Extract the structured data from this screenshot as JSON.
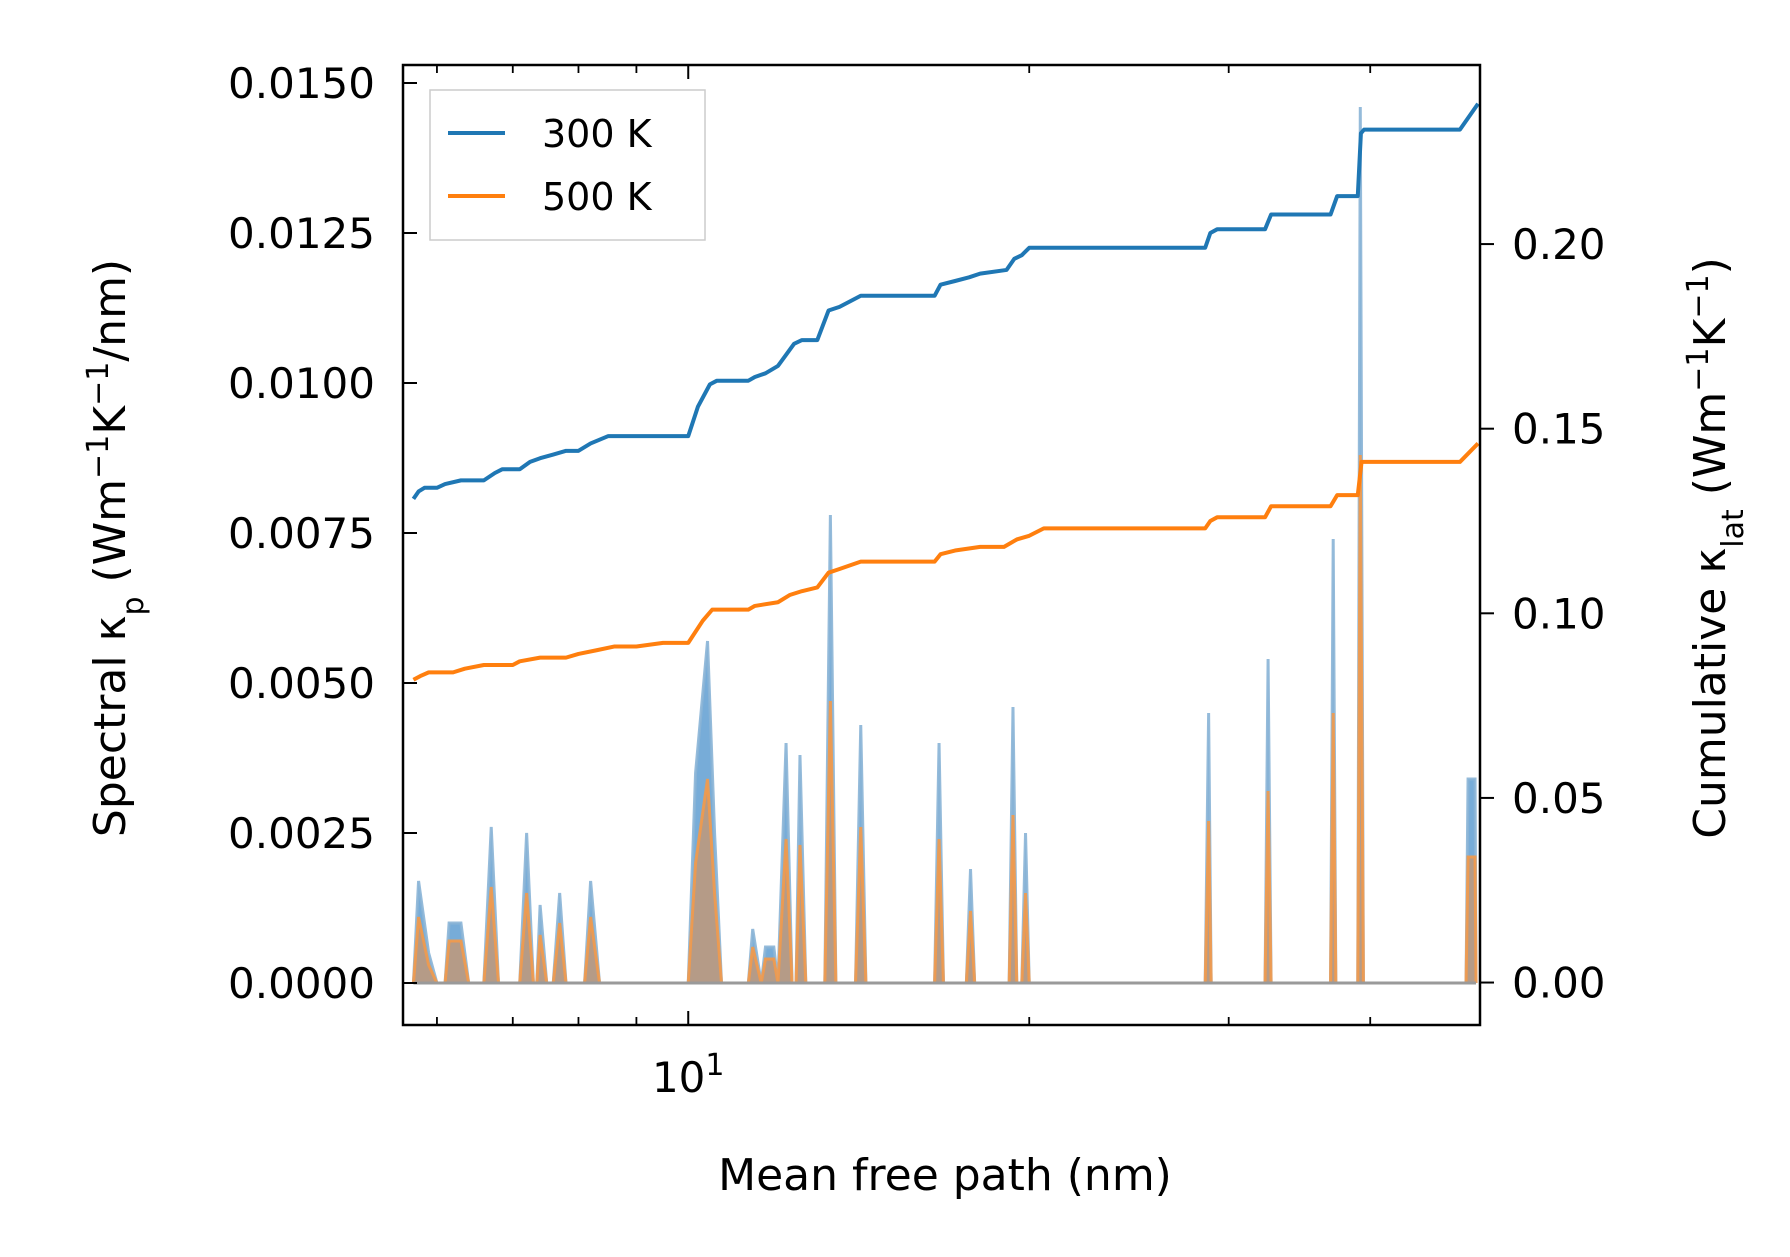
{
  "chart_data": {
    "type": "line",
    "xscale": "log",
    "xlabel": "Mean free path (nm)",
    "x_tick_major": {
      "base": "10",
      "exponent": "1",
      "value": 10
    },
    "x_minor_ticks": [
      6,
      7,
      8,
      9,
      20,
      30,
      40
    ],
    "xlim": [
      5.6,
      50
    ],
    "ylabel_left": {
      "main": "Spectral κ",
      "sub": "p",
      "unit_open": " (Wm",
      "sup1": "−1",
      "mid": "K",
      "sup2": "−1",
      "unit_close": "/nm)"
    },
    "ylabel_right": {
      "main": "Cumulative κ",
      "sub": "lat",
      "unit_open": " (Wm",
      "sup1": "−1",
      "mid": "K",
      "sup2": "−1",
      "unit_close": ")"
    },
    "ylim_left": [
      -0.0007,
      0.0153
    ],
    "ylim_right": [
      -0.0115,
      0.2485
    ],
    "yticks_left": [
      "0.0000",
      "0.0025",
      "0.0050",
      "0.0075",
      "0.0100",
      "0.0125",
      "0.0150"
    ],
    "yticks_right": [
      "0.00",
      "0.05",
      "0.10",
      "0.15",
      "0.20"
    ],
    "legend": {
      "position": "upper-left",
      "entries": [
        "300 K",
        "500 K"
      ]
    },
    "colors": {
      "s300": "#1f77b4",
      "s500": "#ff7f0e",
      "fill300": "#5f9ed1",
      "fill500": "#c9966c"
    },
    "cumulative": [
      {
        "name": "300 K",
        "axis": "right",
        "points": [
          [
            5.72,
            0.131
          ],
          [
            5.78,
            0.133
          ],
          [
            5.85,
            0.134
          ],
          [
            6.0,
            0.134
          ],
          [
            6.1,
            0.135
          ],
          [
            6.3,
            0.136
          ],
          [
            6.6,
            0.136
          ],
          [
            6.75,
            0.138
          ],
          [
            6.85,
            0.139
          ],
          [
            7.1,
            0.139
          ],
          [
            7.25,
            0.141
          ],
          [
            7.4,
            0.142
          ],
          [
            7.6,
            0.143
          ],
          [
            7.8,
            0.144
          ],
          [
            8.0,
            0.144
          ],
          [
            8.2,
            0.146
          ],
          [
            8.5,
            0.148
          ],
          [
            9.0,
            0.148
          ],
          [
            10.0,
            0.148
          ],
          [
            10.2,
            0.156
          ],
          [
            10.45,
            0.162
          ],
          [
            10.6,
            0.163
          ],
          [
            11.3,
            0.163
          ],
          [
            11.45,
            0.164
          ],
          [
            11.7,
            0.165
          ],
          [
            12.0,
            0.167
          ],
          [
            12.2,
            0.17
          ],
          [
            12.4,
            0.173
          ],
          [
            12.6,
            0.174
          ],
          [
            13.0,
            0.174
          ],
          [
            13.3,
            0.182
          ],
          [
            13.6,
            0.183
          ],
          [
            14.2,
            0.186
          ],
          [
            15.0,
            0.186
          ],
          [
            16.5,
            0.186
          ],
          [
            16.7,
            0.189
          ],
          [
            17.2,
            0.19
          ],
          [
            17.7,
            0.191
          ],
          [
            18.1,
            0.192
          ],
          [
            19.1,
            0.193
          ],
          [
            19.4,
            0.196
          ],
          [
            19.7,
            0.197
          ],
          [
            20.0,
            0.199
          ],
          [
            20.6,
            0.199
          ],
          [
            24.0,
            0.199
          ],
          [
            28.6,
            0.199
          ],
          [
            28.9,
            0.203
          ],
          [
            29.3,
            0.204
          ],
          [
            31.0,
            0.204
          ],
          [
            32.3,
            0.204
          ],
          [
            32.7,
            0.208
          ],
          [
            35.0,
            0.208
          ],
          [
            36.9,
            0.208
          ],
          [
            37.4,
            0.213
          ],
          [
            39.0,
            0.213
          ],
          [
            39.25,
            0.23
          ],
          [
            39.5,
            0.231
          ],
          [
            48.0,
            0.231
          ],
          [
            49.8,
            0.238
          ]
        ]
      },
      {
        "name": "500 K",
        "axis": "right",
        "points": [
          [
            5.72,
            0.082
          ],
          [
            5.8,
            0.083
          ],
          [
            5.9,
            0.084
          ],
          [
            6.2,
            0.084
          ],
          [
            6.35,
            0.085
          ],
          [
            6.6,
            0.086
          ],
          [
            7.0,
            0.086
          ],
          [
            7.1,
            0.087
          ],
          [
            7.4,
            0.088
          ],
          [
            7.8,
            0.088
          ],
          [
            8.0,
            0.089
          ],
          [
            8.3,
            0.09
          ],
          [
            8.6,
            0.091
          ],
          [
            9.0,
            0.091
          ],
          [
            9.5,
            0.092
          ],
          [
            10.0,
            0.092
          ],
          [
            10.3,
            0.098
          ],
          [
            10.5,
            0.101
          ],
          [
            11.3,
            0.101
          ],
          [
            11.45,
            0.102
          ],
          [
            12.0,
            0.103
          ],
          [
            12.3,
            0.105
          ],
          [
            12.6,
            0.106
          ],
          [
            13.0,
            0.107
          ],
          [
            13.3,
            0.111
          ],
          [
            13.6,
            0.112
          ],
          [
            14.2,
            0.114
          ],
          [
            15.0,
            0.114
          ],
          [
            16.5,
            0.114
          ],
          [
            16.7,
            0.116
          ],
          [
            17.2,
            0.117
          ],
          [
            18.1,
            0.118
          ],
          [
            19.0,
            0.118
          ],
          [
            19.5,
            0.12
          ],
          [
            20.0,
            0.121
          ],
          [
            20.6,
            0.123
          ],
          [
            24.0,
            0.123
          ],
          [
            28.6,
            0.123
          ],
          [
            28.9,
            0.125
          ],
          [
            29.3,
            0.126
          ],
          [
            32.3,
            0.126
          ],
          [
            32.7,
            0.129
          ],
          [
            35.0,
            0.129
          ],
          [
            36.9,
            0.129
          ],
          [
            37.4,
            0.132
          ],
          [
            39.0,
            0.132
          ],
          [
            39.3,
            0.141
          ],
          [
            48.0,
            0.141
          ],
          [
            49.8,
            0.146
          ]
        ]
      }
    ],
    "spectral": [
      {
        "name": "300 K",
        "axis": "left",
        "peaks": [
          [
            5.72,
            0.0
          ],
          [
            5.78,
            0.0017
          ],
          [
            5.9,
            0.0005
          ],
          [
            6.0,
            0.0
          ],
          [
            6.1,
            0.0
          ],
          [
            6.15,
            0.001
          ],
          [
            6.3,
            0.001
          ],
          [
            6.4,
            0.0
          ],
          [
            6.6,
            0.0
          ],
          [
            6.7,
            0.0026
          ],
          [
            6.8,
            0.0
          ],
          [
            7.1,
            0.0
          ],
          [
            7.2,
            0.0025
          ],
          [
            7.3,
            0.0
          ],
          [
            7.35,
            0.0
          ],
          [
            7.4,
            0.0013
          ],
          [
            7.5,
            0.0
          ],
          [
            7.6,
            0.0
          ],
          [
            7.7,
            0.0015
          ],
          [
            7.8,
            0.0
          ],
          [
            8.1,
            0.0
          ],
          [
            8.2,
            0.0017
          ],
          [
            8.35,
            0.0
          ],
          [
            10.0,
            0.0
          ],
          [
            10.15,
            0.0035
          ],
          [
            10.4,
            0.0057
          ],
          [
            10.55,
            0.0025
          ],
          [
            10.7,
            0.0
          ],
          [
            11.3,
            0.0
          ],
          [
            11.4,
            0.0009
          ],
          [
            11.6,
            0.0
          ],
          [
            11.7,
            0.0006
          ],
          [
            11.9,
            0.0006
          ],
          [
            12.0,
            0.0
          ],
          [
            12.2,
            0.004
          ],
          [
            12.35,
            0.0
          ],
          [
            12.45,
            0.0
          ],
          [
            12.55,
            0.0038
          ],
          [
            12.7,
            0.0
          ],
          [
            13.2,
            0.0
          ],
          [
            13.35,
            0.0078
          ],
          [
            13.5,
            0.0
          ],
          [
            14.05,
            0.0
          ],
          [
            14.2,
            0.0043
          ],
          [
            14.35,
            0.0
          ],
          [
            16.5,
            0.0
          ],
          [
            16.65,
            0.004
          ],
          [
            16.8,
            0.0
          ],
          [
            17.6,
            0.0
          ],
          [
            17.75,
            0.0019
          ],
          [
            17.9,
            0.0
          ],
          [
            19.2,
            0.0
          ],
          [
            19.35,
            0.0046
          ],
          [
            19.5,
            0.0
          ],
          [
            19.7,
            0.0
          ],
          [
            19.85,
            0.0025
          ],
          [
            20.0,
            0.0
          ],
          [
            28.6,
            0.0
          ],
          [
            28.8,
            0.0045
          ],
          [
            28.95,
            0.0
          ],
          [
            32.3,
            0.0
          ],
          [
            32.5,
            0.0054
          ],
          [
            32.7,
            0.0
          ],
          [
            36.9,
            0.0
          ],
          [
            37.1,
            0.0074
          ],
          [
            37.3,
            0.0
          ],
          [
            39.0,
            0.0
          ],
          [
            39.2,
            0.0146
          ],
          [
            39.45,
            0.0
          ],
          [
            48.6,
            0.0
          ],
          [
            48.8,
            0.0034
          ],
          [
            49.5,
            0.0034
          ],
          [
            49.6,
            0.0
          ]
        ]
      },
      {
        "name": "500 K",
        "axis": "left",
        "peaks": [
          [
            5.72,
            0.0
          ],
          [
            5.78,
            0.0011
          ],
          [
            5.9,
            0.0003
          ],
          [
            6.0,
            0.0
          ],
          [
            6.1,
            0.0
          ],
          [
            6.15,
            0.0007
          ],
          [
            6.3,
            0.0007
          ],
          [
            6.4,
            0.0
          ],
          [
            6.6,
            0.0
          ],
          [
            6.7,
            0.0016
          ],
          [
            6.8,
            0.0
          ],
          [
            7.1,
            0.0
          ],
          [
            7.2,
            0.0015
          ],
          [
            7.3,
            0.0
          ],
          [
            7.35,
            0.0
          ],
          [
            7.4,
            0.0008
          ],
          [
            7.5,
            0.0
          ],
          [
            7.6,
            0.0
          ],
          [
            7.7,
            0.001
          ],
          [
            7.8,
            0.0
          ],
          [
            8.1,
            0.0
          ],
          [
            8.2,
            0.0011
          ],
          [
            8.35,
            0.0
          ],
          [
            10.0,
            0.0
          ],
          [
            10.15,
            0.002
          ],
          [
            10.4,
            0.0034
          ],
          [
            10.55,
            0.0015
          ],
          [
            10.7,
            0.0
          ],
          [
            11.3,
            0.0
          ],
          [
            11.4,
            0.0006
          ],
          [
            11.6,
            0.0
          ],
          [
            11.7,
            0.0004
          ],
          [
            11.9,
            0.0004
          ],
          [
            12.0,
            0.0
          ],
          [
            12.2,
            0.0024
          ],
          [
            12.35,
            0.0
          ],
          [
            12.45,
            0.0
          ],
          [
            12.55,
            0.0023
          ],
          [
            12.7,
            0.0
          ],
          [
            13.2,
            0.0
          ],
          [
            13.35,
            0.0047
          ],
          [
            13.5,
            0.0
          ],
          [
            14.05,
            0.0
          ],
          [
            14.2,
            0.0026
          ],
          [
            14.35,
            0.0
          ],
          [
            16.5,
            0.0
          ],
          [
            16.65,
            0.0024
          ],
          [
            16.8,
            0.0
          ],
          [
            17.6,
            0.0
          ],
          [
            17.75,
            0.0012
          ],
          [
            17.9,
            0.0
          ],
          [
            19.2,
            0.0
          ],
          [
            19.35,
            0.0028
          ],
          [
            19.5,
            0.0
          ],
          [
            19.7,
            0.0
          ],
          [
            19.85,
            0.0015
          ],
          [
            20.0,
            0.0
          ],
          [
            28.6,
            0.0
          ],
          [
            28.8,
            0.0027
          ],
          [
            28.95,
            0.0
          ],
          [
            32.3,
            0.0
          ],
          [
            32.5,
            0.0032
          ],
          [
            32.7,
            0.0
          ],
          [
            36.9,
            0.0
          ],
          [
            37.1,
            0.0045
          ],
          [
            37.3,
            0.0
          ],
          [
            39.0,
            0.0
          ],
          [
            39.2,
            0.0088
          ],
          [
            39.45,
            0.0
          ],
          [
            48.6,
            0.0
          ],
          [
            48.8,
            0.0021
          ],
          [
            49.5,
            0.0021
          ],
          [
            49.6,
            0.0
          ]
        ]
      }
    ]
  }
}
